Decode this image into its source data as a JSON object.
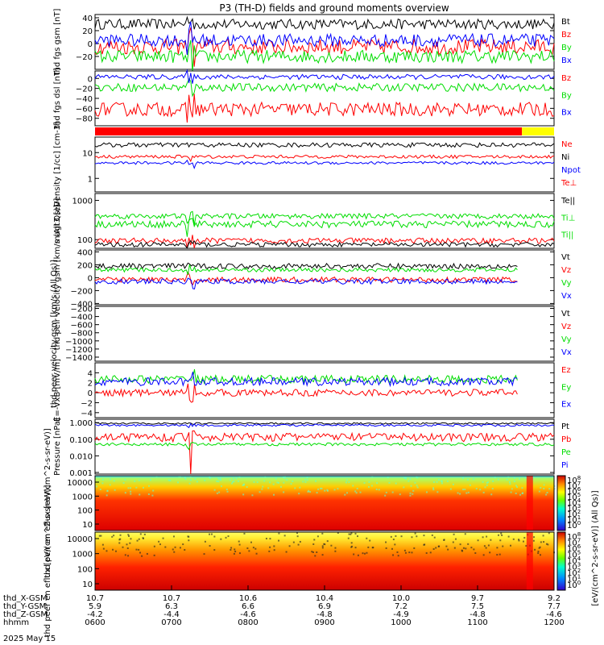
{
  "title": "P3 (TH-D) fields and ground moments overview",
  "colors": {
    "black": "#000000",
    "red": "#ff0000",
    "green": "#00dd00",
    "blue": "#0000ff",
    "yellow": "#ffff00"
  },
  "footer": {
    "date": "2025 May 15",
    "rows": [
      {
        "label": "thd_X-GSM",
        "values": [
          "10.7",
          "10.7",
          "10.6",
          "10.4",
          "10.0",
          "9.7",
          "9.2"
        ]
      },
      {
        "label": "thd_Y-GSM",
        "values": [
          "5.9",
          "6.3",
          "6.6",
          "6.9",
          "7.2",
          "7.5",
          "7.7"
        ]
      },
      {
        "label": "thd_Z-GSM",
        "values": [
          "-4.2",
          "-4.4",
          "-4.6",
          "-4.8",
          "-4.9",
          "-4.8",
          "-4.6"
        ]
      },
      {
        "label": "hhmm",
        "values": [
          "0600",
          "0700",
          "0800",
          "0900",
          "1000",
          "1100",
          "1200"
        ]
      }
    ]
  },
  "colorbar": {
    "title": "[eV/(cm^2-s-sr-eV)] (All Qs)]",
    "ticks": [
      "10^8",
      "10^7",
      "10^6",
      "10^5",
      "10^4",
      "10^3",
      "10^2",
      "10^1",
      "10^0"
    ],
    "ticks_lower": [
      "10^8",
      "10^7",
      "10^6",
      "10^5",
      "10^4",
      "10^3",
      "10^2",
      "10^1",
      "10^0"
    ]
  },
  "chart_data": [
    {
      "type": "line",
      "ylabel": "thd fgs gsm [nT]",
      "ylim": [
        -40,
        45
      ],
      "yticks": [
        "40",
        "20",
        "0",
        "−20"
      ],
      "legend": [
        {
          "name": "Bt",
          "color": "black"
        },
        {
          "name": "Bz",
          "color": "red"
        },
        {
          "name": "By",
          "color": "green"
        },
        {
          "name": "Bx",
          "color": "blue"
        }
      ],
      "series": [
        {
          "name": "Bt",
          "level": 30,
          "noise": 8
        },
        {
          "name": "Bz",
          "level": -5,
          "noise": 12
        },
        {
          "name": "By",
          "level": -20,
          "noise": 10
        },
        {
          "name": "Bx",
          "level": 5,
          "noise": 10
        }
      ]
    },
    {
      "type": "line",
      "ylabel": "thd fgs dsl [nT]",
      "ylim": [
        -95,
        15
      ],
      "yticks": [
        "0",
        "−20",
        "−40",
        "−60",
        "−80"
      ],
      "legend": [
        {
          "name": "Bz",
          "color": "red"
        },
        {
          "name": "By",
          "color": "green"
        },
        {
          "name": "Bx",
          "color": "blue"
        }
      ],
      "series": [
        {
          "name": "Bz",
          "level": -62,
          "noise": 14
        },
        {
          "name": "By",
          "level": -18,
          "noise": 8
        },
        {
          "name": "Bx",
          "level": 3,
          "noise": 5
        }
      ]
    },
    {
      "type": "bar",
      "flag": true
    },
    {
      "type": "line",
      "ylabel": "Density [1/cc] [cm-3]",
      "ylim": [
        0.3,
        40
      ],
      "log": true,
      "yticks": [
        "10",
        "1"
      ],
      "legend": [
        {
          "name": "Ne",
          "color": "red"
        },
        {
          "name": "Ni",
          "color": "black"
        },
        {
          "name": "Npot",
          "color": "blue"
        },
        {
          "name": "Te⊥",
          "color": "red"
        }
      ],
      "series": [
        {
          "name": "Ne",
          "level": 7,
          "noise": 1
        },
        {
          "name": "Ni",
          "level": 20,
          "noise": 4
        },
        {
          "name": "Npot",
          "level": 4,
          "noise": 0.5
        }
      ]
    },
    {
      "type": "line",
      "ylabel": "magt3 [eV]",
      "ylim": [
        60,
        1500
      ],
      "log": true,
      "yticks": [
        "1000",
        "100"
      ],
      "legend": [
        {
          "name": "Te||",
          "color": "black"
        },
        {
          "name": "Ti⊥",
          "color": "green"
        },
        {
          "name": "Ti||",
          "color": "green"
        }
      ],
      "series": [
        {
          "name": "Ti⊥",
          "level": 400,
          "noise": 60
        },
        {
          "name": "Ti||",
          "level": 250,
          "noise": 50
        },
        {
          "name": "Te⊥",
          "level": 95,
          "noise": 15
        },
        {
          "name": "Te||",
          "level": 75,
          "noise": 10
        }
      ]
    },
    {
      "type": "line",
      "ylabel": "thd peir velocity gsm [km/s (All Qs)]",
      "ylim": [
        -420,
        430
      ],
      "yticks": [
        "400",
        "200",
        "0",
        "−200",
        "−400"
      ],
      "legend": [
        {
          "name": "Vt",
          "color": "black"
        },
        {
          "name": "Vz",
          "color": "red"
        },
        {
          "name": "Vy",
          "color": "green"
        },
        {
          "name": "Vx",
          "color": "blue"
        }
      ],
      "series": [
        {
          "name": "Vt",
          "level": 180,
          "noise": 40
        },
        {
          "name": "Vz",
          "level": -30,
          "noise": 40
        },
        {
          "name": "Vy",
          "level": 120,
          "noise": 30
        },
        {
          "name": "Vx",
          "level": -60,
          "noise": 40
        }
      ]
    },
    {
      "type": "line",
      "ylabel": "thd peer velocity gsm [km/s (All Qs)]",
      "ylim": [
        -1500,
        -150
      ],
      "yticks": [
        "−200",
        "−400",
        "−600",
        "−800",
        "−1000",
        "−1200",
        "−1400"
      ],
      "legend": [
        {
          "name": "Vt",
          "color": "black"
        },
        {
          "name": "Vz",
          "color": "red"
        },
        {
          "name": "Vy",
          "color": "green"
        },
        {
          "name": "Vx",
          "color": "blue"
        }
      ],
      "series": []
    },
    {
      "type": "line",
      "ylabel": "E=-VxB [mV/m]",
      "ylim": [
        -5,
        6
      ],
      "yticks": [
        "4",
        "2",
        "0",
        "−2",
        "−4"
      ],
      "legend": [
        {
          "name": "Ez",
          "color": "red"
        },
        {
          "name": "Ey",
          "color": "green"
        },
        {
          "name": "Ex",
          "color": "blue"
        }
      ],
      "series": [
        {
          "name": "Ey",
          "level": 2.7,
          "noise": 0.8
        },
        {
          "name": "Ez",
          "level": 0,
          "noise": 0.7
        },
        {
          "name": "Ex",
          "level": 2.2,
          "noise": 0.8
        }
      ]
    },
    {
      "type": "line",
      "ylabel": "Pressure [nPa]",
      "ylim": [
        0.0008,
        1.6
      ],
      "log": true,
      "yticks": [
        "1.000",
        "0.100",
        "0.010",
        "0.001"
      ],
      "legend": [
        {
          "name": "Pt",
          "color": "black"
        },
        {
          "name": "Pb",
          "color": "red"
        },
        {
          "name": "Pe",
          "color": "green"
        },
        {
          "name": "Pi",
          "color": "blue"
        }
      ],
      "series": [
        {
          "name": "Pt",
          "level": 0.9,
          "noise": 0.1
        },
        {
          "name": "Pi",
          "level": 0.7,
          "noise": 0.1
        },
        {
          "name": "Pb",
          "level": 0.15,
          "noise": 0.08
        },
        {
          "name": "Pe",
          "level": 0.05,
          "noise": 0.01
        }
      ]
    },
    {
      "type": "heatmap",
      "ylabel": "thd peir en eflux [eV/(cm^2-s-sr-eV)]",
      "yticks": [
        "10000",
        "1000",
        "100",
        "10"
      ],
      "colorbar": "first"
    },
    {
      "type": "heatmap",
      "ylabel": "thd peer en eflux [eV/(cm^2-s-sr-eV)]",
      "yticks": [
        "10000",
        "1000",
        "100",
        "10"
      ],
      "colorbar": "second"
    }
  ]
}
